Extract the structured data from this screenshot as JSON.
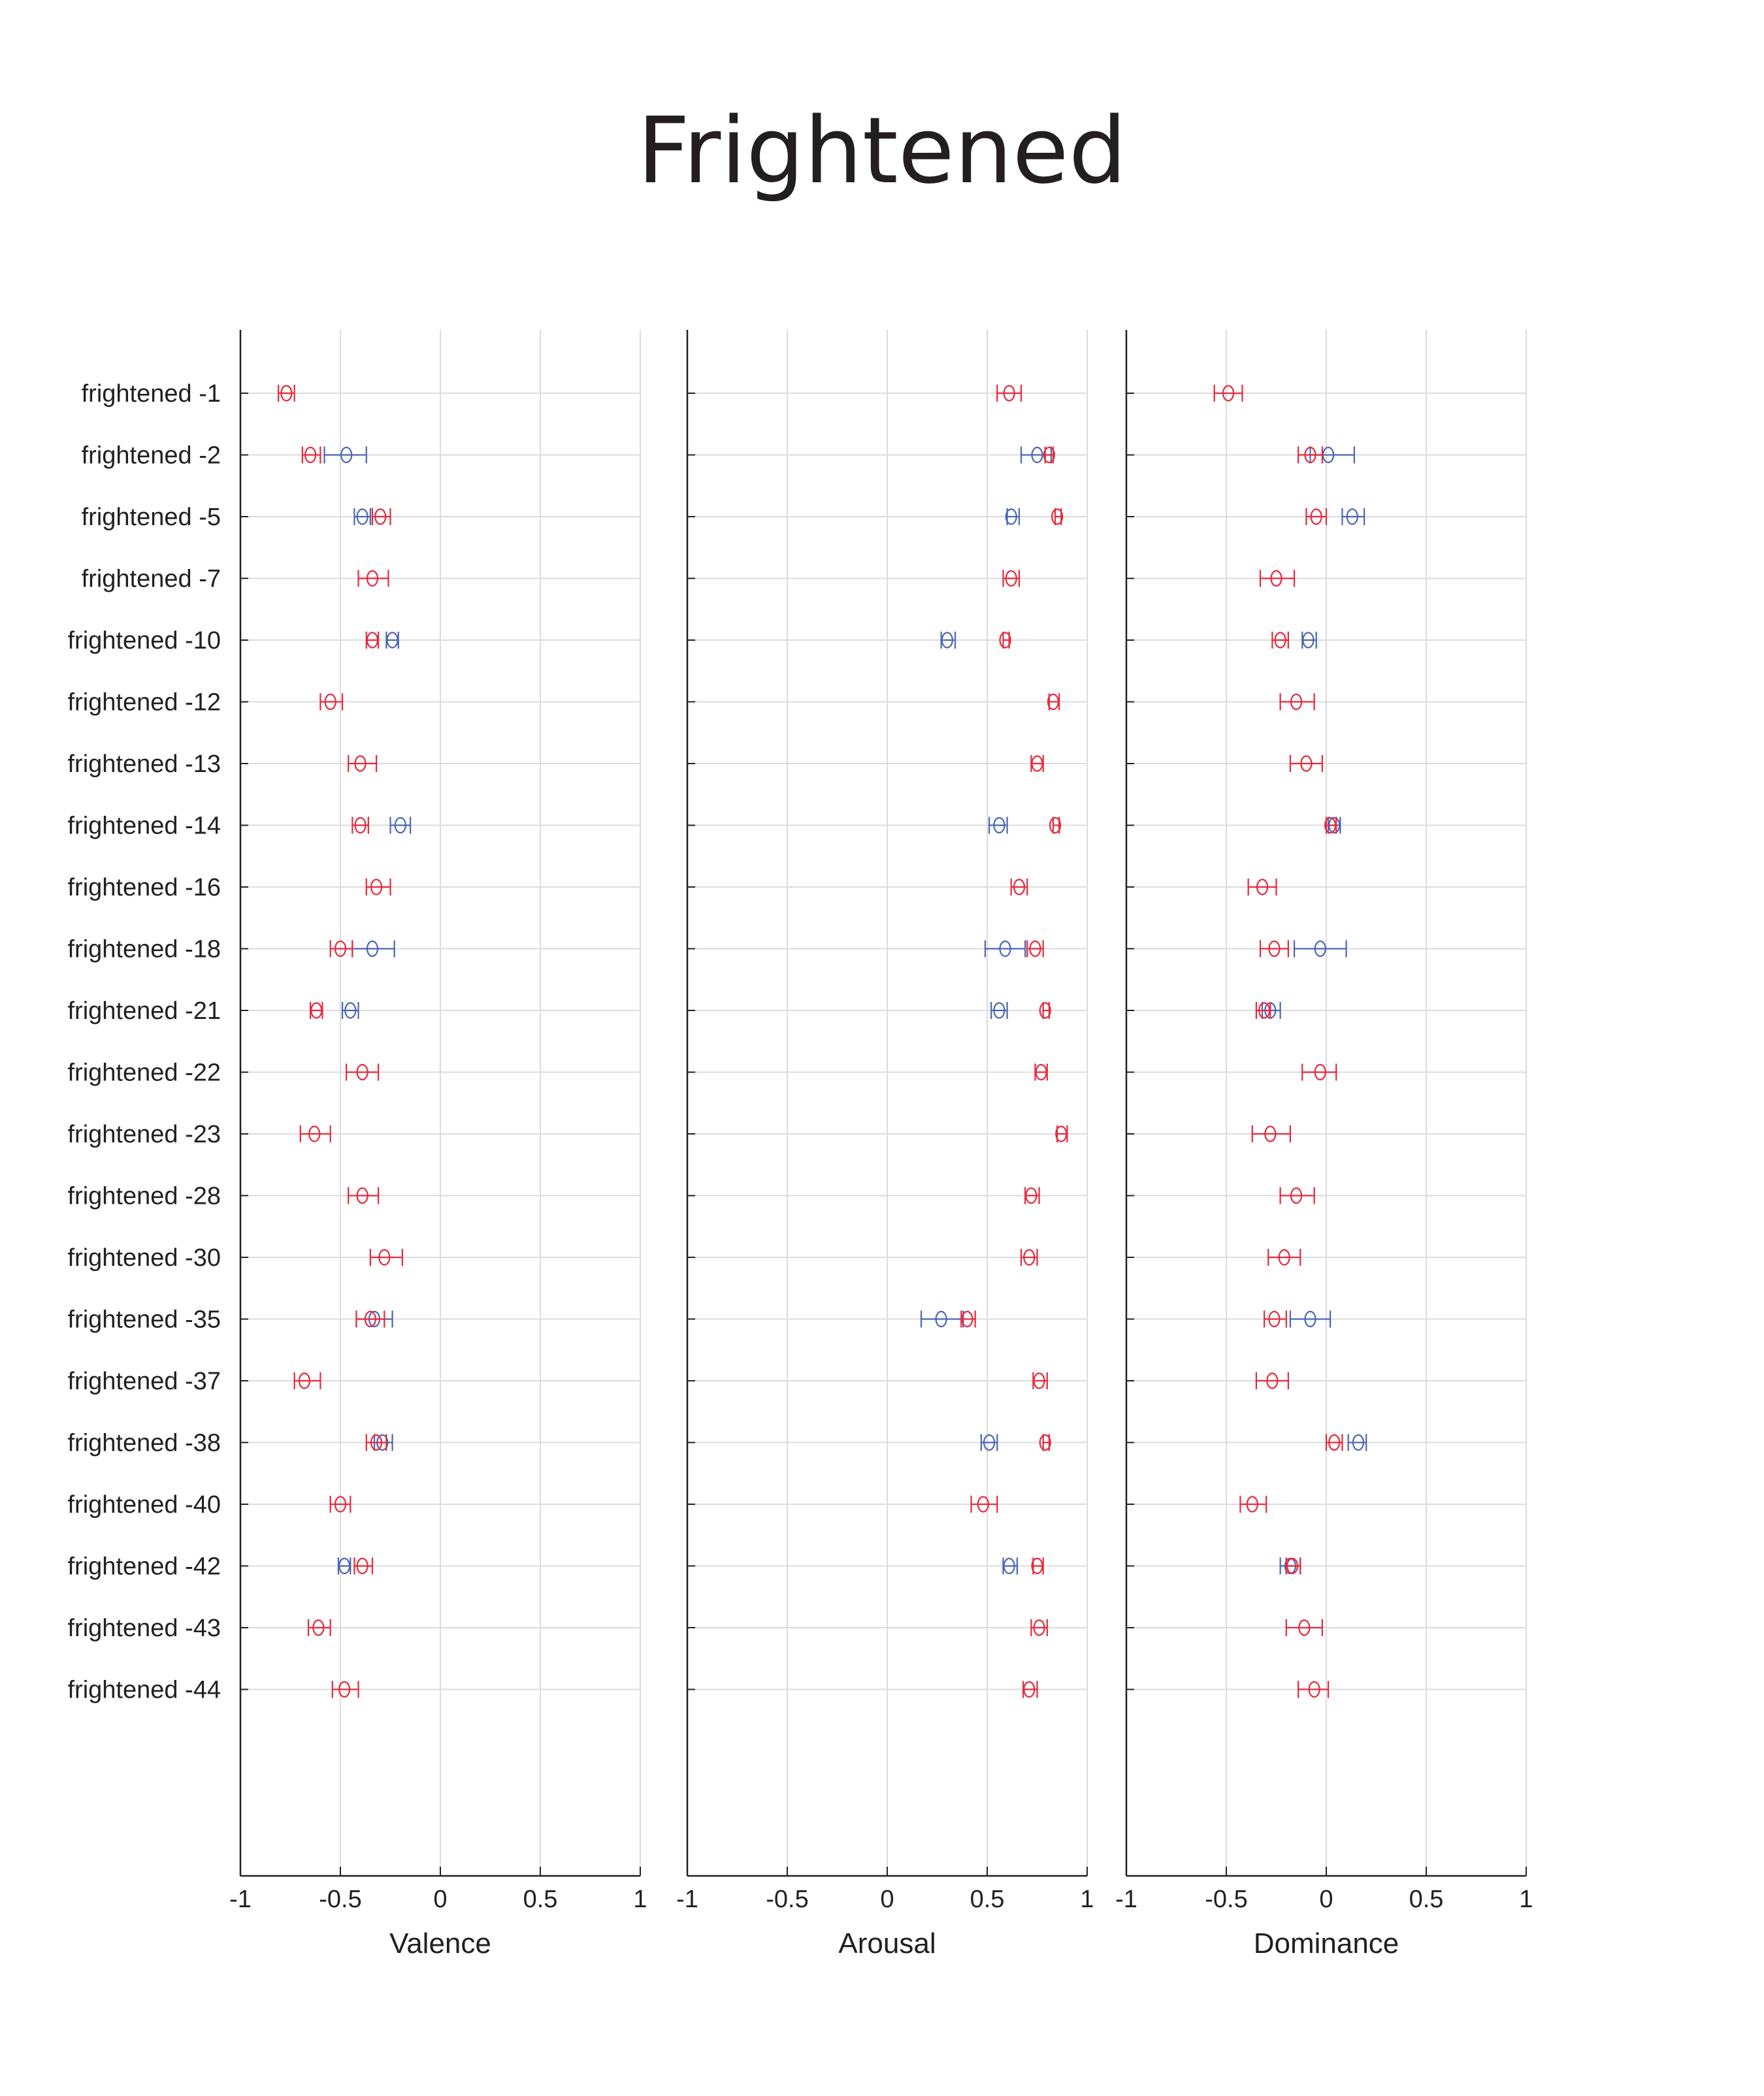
{
  "title": "Frightened",
  "colors": {
    "red": "#e8283c",
    "blue": "#4a66b3",
    "grid": "#dcdcdc",
    "axis": "#231f20"
  },
  "chart_data": [
    {
      "type": "errorbar",
      "xlabel": "Valence",
      "xlim": [
        -1,
        1
      ],
      "xticks": [
        "-1",
        "-0.5",
        "0",
        "0.5",
        "1"
      ],
      "grid": true,
      "categories": [
        "frightened -1",
        "frightened -2",
        "frightened -5",
        "frightened -7",
        "frightened -10",
        "frightened -12",
        "frightened -13",
        "frightened -14",
        "frightened -16",
        "frightened -18",
        "frightened -21",
        "frightened -22",
        "frightened -23",
        "frightened -28",
        "frightened -30",
        "frightened -35",
        "frightened -37",
        "frightened -38",
        "frightened -40",
        "frightened -42",
        "frightened -43",
        "frightened -44"
      ],
      "series": [
        {
          "color": "red",
          "mean": [
            -0.77,
            -0.65,
            -0.3,
            -0.34,
            -0.34,
            -0.55,
            -0.4,
            -0.4,
            -0.32,
            -0.5,
            -0.62,
            -0.39,
            -0.63,
            -0.39,
            -0.28,
            -0.35,
            -0.68,
            -0.32,
            -0.5,
            -0.39,
            -0.61,
            -0.48
          ],
          "low": [
            -0.81,
            -0.69,
            -0.34,
            -0.41,
            -0.37,
            -0.6,
            -0.46,
            -0.44,
            -0.37,
            -0.55,
            -0.65,
            -0.47,
            -0.7,
            -0.46,
            -0.35,
            -0.42,
            -0.73,
            -0.37,
            -0.55,
            -0.43,
            -0.66,
            -0.54
          ],
          "high": [
            -0.73,
            -0.6,
            -0.25,
            -0.26,
            -0.31,
            -0.49,
            -0.32,
            -0.36,
            -0.25,
            -0.44,
            -0.59,
            -0.31,
            -0.55,
            -0.31,
            -0.19,
            -0.28,
            -0.6,
            -0.27,
            -0.45,
            -0.34,
            -0.55,
            -0.41
          ]
        },
        {
          "color": "blue",
          "mean": [
            null,
            -0.47,
            -0.39,
            null,
            -0.24,
            null,
            null,
            -0.2,
            null,
            -0.34,
            -0.45,
            null,
            null,
            null,
            null,
            -0.33,
            null,
            -0.29,
            null,
            -0.48,
            null,
            null
          ],
          "low": [
            null,
            -0.58,
            -0.43,
            null,
            -0.27,
            null,
            null,
            -0.25,
            null,
            -0.44,
            -0.49,
            null,
            null,
            null,
            null,
            -0.42,
            null,
            -0.33,
            null,
            -0.51,
            null,
            null
          ],
          "high": [
            null,
            -0.37,
            -0.35,
            null,
            -0.21,
            null,
            null,
            -0.15,
            null,
            -0.23,
            -0.41,
            null,
            null,
            null,
            null,
            -0.24,
            null,
            -0.24,
            null,
            -0.45,
            null,
            null
          ]
        }
      ]
    },
    {
      "type": "errorbar",
      "xlabel": "Arousal",
      "xlim": [
        -1,
        1
      ],
      "xticks": [
        "-1",
        "-0.5",
        "0",
        "0.5",
        "1"
      ],
      "grid": true,
      "categories": [
        "frightened -1",
        "frightened -2",
        "frightened -5",
        "frightened -7",
        "frightened -10",
        "frightened -12",
        "frightened -13",
        "frightened -14",
        "frightened -16",
        "frightened -18",
        "frightened -21",
        "frightened -22",
        "frightened -23",
        "frightened -28",
        "frightened -30",
        "frightened -35",
        "frightened -37",
        "frightened -38",
        "frightened -40",
        "frightened -42",
        "frightened -43",
        "frightened -44"
      ],
      "series": [
        {
          "color": "red",
          "mean": [
            0.61,
            0.81,
            0.85,
            0.62,
            0.59,
            0.83,
            0.75,
            0.84,
            0.66,
            0.74,
            0.79,
            0.77,
            0.87,
            0.72,
            0.71,
            0.4,
            0.76,
            0.79,
            0.48,
            0.75,
            0.76,
            0.71
          ],
          "low": [
            0.55,
            0.79,
            0.84,
            0.58,
            0.58,
            0.81,
            0.72,
            0.83,
            0.62,
            0.7,
            0.78,
            0.74,
            0.85,
            0.69,
            0.67,
            0.37,
            0.73,
            0.78,
            0.42,
            0.73,
            0.72,
            0.68
          ],
          "high": [
            0.67,
            0.83,
            0.87,
            0.66,
            0.61,
            0.86,
            0.78,
            0.86,
            0.7,
            0.78,
            0.81,
            0.8,
            0.9,
            0.76,
            0.75,
            0.44,
            0.8,
            0.81,
            0.55,
            0.78,
            0.8,
            0.75
          ]
        },
        {
          "color": "blue",
          "mean": [
            null,
            0.75,
            0.62,
            null,
            0.3,
            null,
            null,
            0.56,
            null,
            0.59,
            0.56,
            null,
            null,
            null,
            null,
            0.27,
            null,
            0.51,
            null,
            0.61,
            null,
            null
          ],
          "low": [
            null,
            0.67,
            0.6,
            null,
            0.27,
            null,
            null,
            0.51,
            null,
            0.49,
            0.52,
            null,
            null,
            null,
            null,
            0.17,
            null,
            0.47,
            null,
            0.58,
            null,
            null
          ],
          "high": [
            null,
            0.82,
            0.66,
            null,
            0.34,
            null,
            null,
            0.6,
            null,
            0.69,
            0.6,
            null,
            null,
            null,
            null,
            0.38,
            null,
            0.55,
            null,
            0.65,
            null,
            null
          ]
        }
      ]
    },
    {
      "type": "errorbar",
      "xlabel": "Dominance",
      "xlim": [
        -1,
        1
      ],
      "xticks": [
        "-1",
        "-0.5",
        "0",
        "0.5",
        "1"
      ],
      "grid": true,
      "categories": [
        "frightened -1",
        "frightened -2",
        "frightened -5",
        "frightened -7",
        "frightened -10",
        "frightened -12",
        "frightened -13",
        "frightened -14",
        "frightened -16",
        "frightened -18",
        "frightened -21",
        "frightened -22",
        "frightened -23",
        "frightened -28",
        "frightened -30",
        "frightened -35",
        "frightened -37",
        "frightened -38",
        "frightened -40",
        "frightened -42",
        "frightened -43",
        "frightened -44"
      ],
      "series": [
        {
          "color": "red",
          "mean": [
            -0.49,
            -0.08,
            -0.05,
            -0.25,
            -0.23,
            -0.15,
            -0.1,
            0.02,
            -0.32,
            -0.26,
            -0.31,
            -0.03,
            -0.28,
            -0.15,
            -0.21,
            -0.26,
            -0.27,
            0.04,
            -0.37,
            -0.17,
            -0.11,
            -0.06
          ],
          "low": [
            -0.56,
            -0.14,
            -0.1,
            -0.33,
            -0.27,
            -0.23,
            -0.18,
            0,
            -0.39,
            -0.33,
            -0.35,
            -0.12,
            -0.37,
            -0.23,
            -0.29,
            -0.31,
            -0.35,
            0,
            -0.43,
            -0.2,
            -0.2,
            -0.14
          ],
          "high": [
            -0.42,
            -0.02,
            0,
            -0.16,
            -0.19,
            -0.06,
            -0.02,
            0.05,
            -0.25,
            -0.19,
            -0.28,
            0.05,
            -0.18,
            -0.06,
            -0.13,
            -0.2,
            -0.19,
            0.08,
            -0.3,
            -0.13,
            -0.02,
            0.01
          ]
        },
        {
          "color": "blue",
          "mean": [
            null,
            0.01,
            0.13,
            null,
            -0.09,
            null,
            null,
            0.04,
            null,
            -0.03,
            -0.28,
            null,
            null,
            null,
            null,
            -0.08,
            null,
            0.16,
            null,
            -0.18,
            null,
            null
          ],
          "low": [
            null,
            -0.08,
            0.08,
            null,
            -0.12,
            null,
            null,
            0.01,
            null,
            -0.16,
            -0.32,
            null,
            null,
            null,
            null,
            -0.18,
            null,
            0.11,
            null,
            -0.23,
            null,
            null
          ],
          "high": [
            null,
            0.14,
            0.19,
            null,
            -0.05,
            null,
            null,
            0.07,
            null,
            0.1,
            -0.23,
            null,
            null,
            null,
            null,
            0.02,
            null,
            0.2,
            null,
            -0.13,
            null,
            null
          ]
        }
      ]
    }
  ]
}
